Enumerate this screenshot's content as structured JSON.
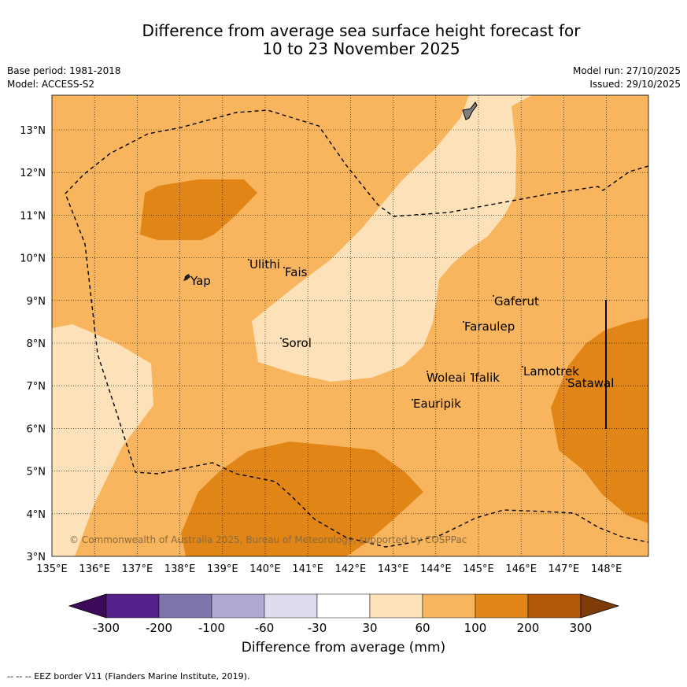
{
  "title_line1": "Difference from average sea surface height forecast for",
  "title_line2": "10 to 23 November 2025",
  "base_period": "Base period: 1981-2018",
  "model": "Model: ACCESS-S2",
  "model_run": "Model run: 27/10/2025",
  "issued": "Issued: 29/10/2025",
  "copyright": "© Commonwealth of Australia 2025, Bureau of Meteorology, supported by COSPPac",
  "lon_labels": [
    "135°E",
    "136°E",
    "137°E",
    "138°E",
    "139°E",
    "140°E",
    "141°E",
    "142°E",
    "143°E",
    "144°E",
    "145°E",
    "146°E",
    "147°E",
    "148°E"
  ],
  "lat_labels": [
    "3°N",
    "4°N",
    "5°N",
    "6°N",
    "7°N",
    "8°N",
    "9°N",
    "10°N",
    "11°N",
    "12°N",
    "13°N"
  ],
  "places": [
    {
      "name": "Yap"
    },
    {
      "name": "Ulithi"
    },
    {
      "name": "Fais"
    },
    {
      "name": "Sorol"
    },
    {
      "name": "Gaferut"
    },
    {
      "name": "Faraulep"
    },
    {
      "name": "Woleai"
    },
    {
      "name": "Ifalik"
    },
    {
      "name": "Lamotrek"
    },
    {
      "name": "Satawal"
    },
    {
      "name": "Eauripik"
    }
  ],
  "colorbar": {
    "title": "Difference from average (mm)",
    "ticks": [
      "-300",
      "-200",
      "-100",
      "-60",
      "-30",
      "30",
      "60",
      "100",
      "200",
      "300"
    ],
    "colors": [
      "#3d0a5a",
      "#54228a",
      "#8074ad",
      "#b0a9d2",
      "#dddcec",
      "#ffffff",
      "#fde1b8",
      "#f8b55e",
      "#e08516",
      "#b35807",
      "#7f3b08"
    ]
  },
  "fill_colors": {
    "pale": "#fde1b8",
    "light": "#f8b55e",
    "mid": "#e08516"
  },
  "footer": "--  --  -- EEZ border V11 (Flanders Marine Institute, 2019)."
}
